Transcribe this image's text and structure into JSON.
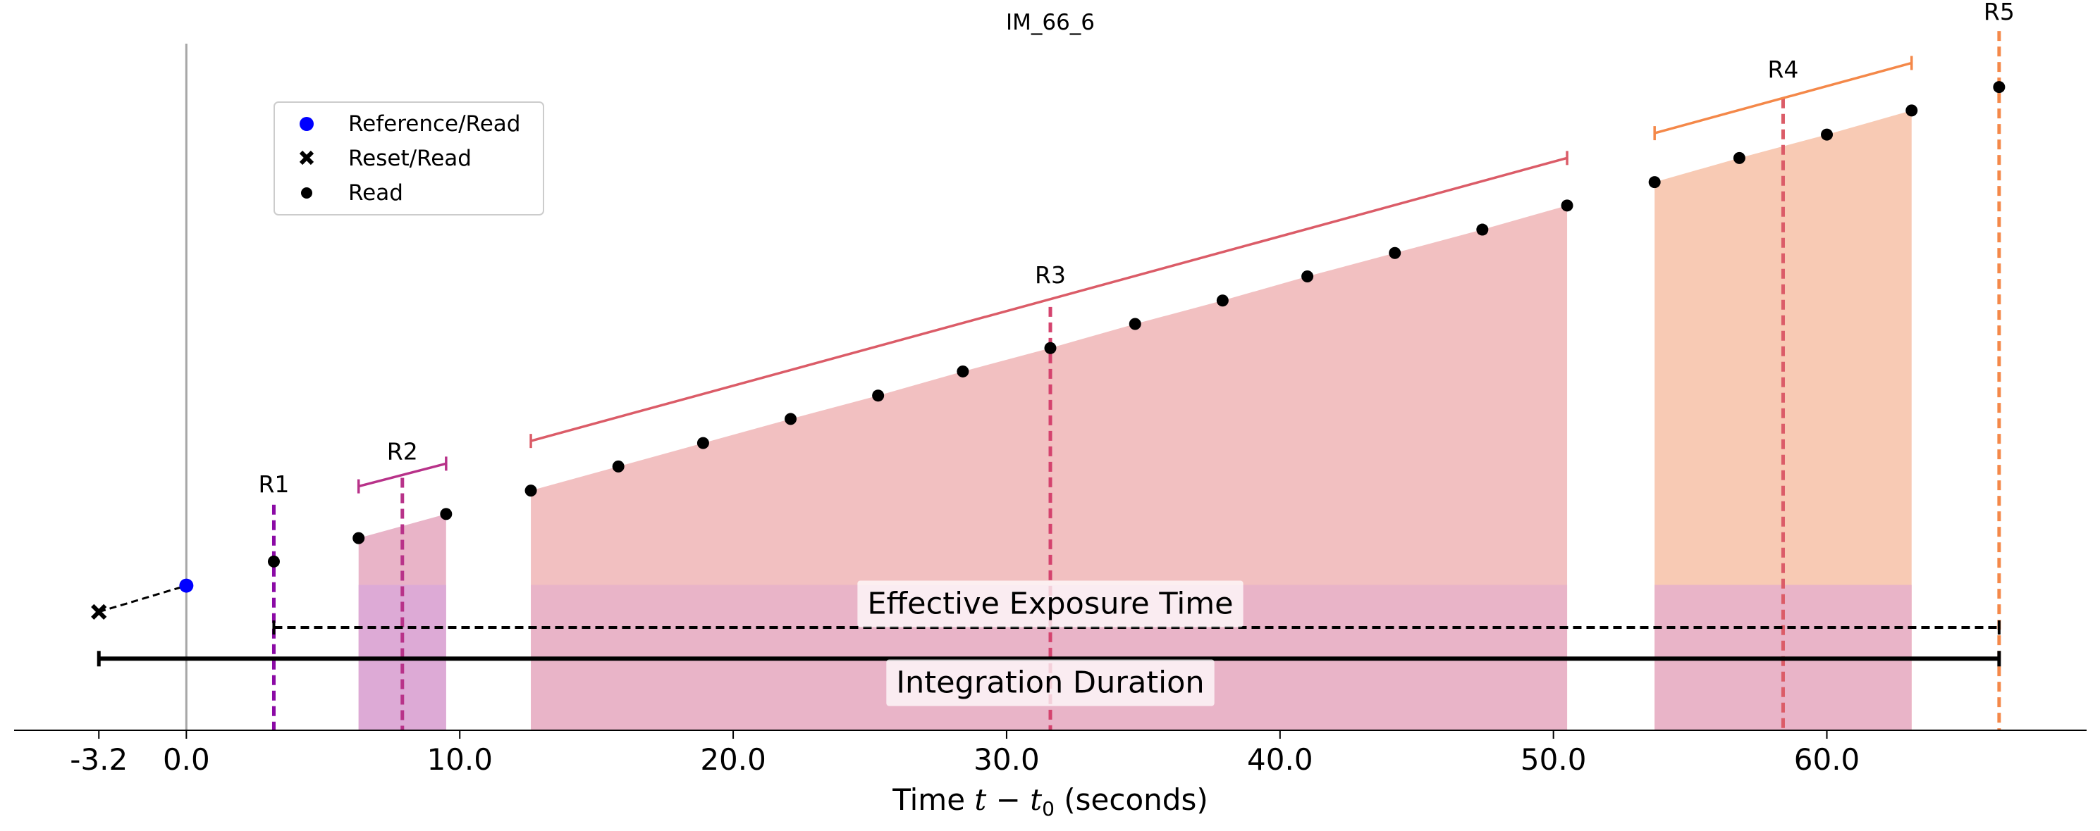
{
  "chart_data": {
    "type": "scatter",
    "title": "IM_66_6",
    "xlabel_text": "Time ",
    "xlabel_math": "t",
    "xlabel_minus": " − ",
    "xlabel_t0": "t",
    "xlabel_sub": "0",
    "xlabel_unit": " (seconds)",
    "xlim": [
      -6.3,
      69.5
    ],
    "ylim": [
      0,
      1
    ],
    "grid": false,
    "legend_position": "top-left",
    "x_ticks": [
      {
        "value": -3.2,
        "label": "-3.2"
      },
      {
        "value": 0.0,
        "label": "0.0"
      },
      {
        "value": 10.0,
        "label": "10.0"
      },
      {
        "value": 20.0,
        "label": "20.0"
      },
      {
        "value": 30.0,
        "label": "30.0"
      },
      {
        "value": 40.0,
        "label": "40.0"
      },
      {
        "value": 50.0,
        "label": "50.0"
      },
      {
        "value": 60.0,
        "label": "60.0"
      }
    ],
    "legend": [
      {
        "label": "Reference/Read",
        "marker": "circle",
        "color": "#0000ff"
      },
      {
        "label": "Reset/Read",
        "marker": "x",
        "color": "#000000"
      },
      {
        "label": "Read",
        "marker": "dot",
        "color": "#000000"
      }
    ],
    "reset_point": {
      "x": -3.2,
      "y": 0.167
    },
    "reference_point": {
      "x": 0.0,
      "y": 0.204
    },
    "reads": [
      {
        "x": 3.2,
        "y": 0.238
      },
      {
        "x": 6.3,
        "y": 0.271
      },
      {
        "x": 9.5,
        "y": 0.305
      },
      {
        "x": 12.6,
        "y": 0.338
      },
      {
        "x": 15.8,
        "y": 0.372
      },
      {
        "x": 18.9,
        "y": 0.405
      },
      {
        "x": 22.1,
        "y": 0.439
      },
      {
        "x": 25.3,
        "y": 0.472
      },
      {
        "x": 28.4,
        "y": 0.506
      },
      {
        "x": 31.6,
        "y": 0.539
      },
      {
        "x": 34.7,
        "y": 0.573
      },
      {
        "x": 37.9,
        "y": 0.606
      },
      {
        "x": 41.0,
        "y": 0.64
      },
      {
        "x": 44.2,
        "y": 0.673
      },
      {
        "x": 47.4,
        "y": 0.706
      },
      {
        "x": 50.5,
        "y": 0.74
      },
      {
        "x": 53.7,
        "y": 0.773
      },
      {
        "x": 56.8,
        "y": 0.807
      },
      {
        "x": 60.0,
        "y": 0.84
      },
      {
        "x": 63.1,
        "y": 0.874
      },
      {
        "x": 66.3,
        "y": 0.907
      }
    ],
    "resultants": [
      {
        "label": "R1",
        "center": 3.2,
        "top": 0.318,
        "color": "#8b0aa5"
      },
      {
        "label": "R2",
        "center": 7.9,
        "start": 6.3,
        "end": 9.5,
        "y_start": 0.344,
        "y_end": 0.376,
        "top": 0.356,
        "color": "#b83289",
        "fill": "#e9b4c8"
      },
      {
        "label": "R3",
        "center": 31.6,
        "start": 12.6,
        "end": 50.5,
        "y_start": 0.408,
        "y_end": 0.807,
        "top": 0.597,
        "color": "#db5c68",
        "fill": "#f2c0c1"
      },
      {
        "label": "R4",
        "center": 58.4,
        "start": 53.7,
        "end": 63.1,
        "y_start": 0.842,
        "y_end": 0.941,
        "top": 0.891,
        "color": "#f48849",
        "fill": "#f8cab4"
      },
      {
        "label": "R5",
        "center": 66.3,
        "top": 0.986,
        "color": "#f48849"
      }
    ],
    "r4_center_line_color": "#db5c68",
    "r3_center_line_color": "#d4436e",
    "effective_exposure": {
      "label": "Effective Exposure Time",
      "start": 3.2,
      "end": 66.3,
      "y": 0.145
    },
    "integration_duration": {
      "label": "Integration Duration",
      "start": -3.2,
      "end": 66.3,
      "y": 0.101
    },
    "lower_band_top": 0.205,
    "lower_band_color": "#e9b4c8",
    "r2_lower_band_color": "#ddaad6"
  }
}
